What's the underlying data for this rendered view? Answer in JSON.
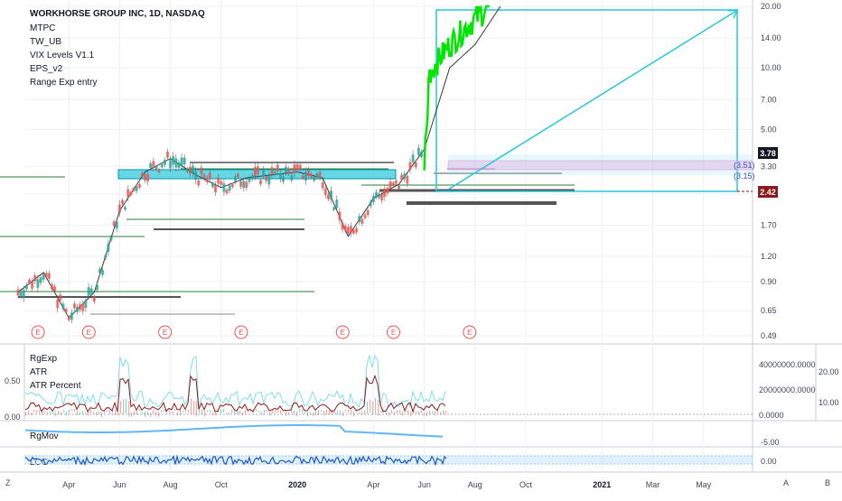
{
  "legend": {
    "title": "WORKHORSE GROUP INC, 1D, NASDAQ",
    "indicators": [
      "MTPC",
      "TW_UB",
      "VIX Levels V1.1",
      "EPS_v2",
      "Range Exp entry"
    ]
  },
  "sub_panels": {
    "rgexp": {
      "labels": [
        "RgExp",
        "ATR",
        "ATR Percent"
      ],
      "left_ticks": [
        "0.50",
        "0.00"
      ],
      "right_ticks": [
        "40000000.0000",
        "20000000.0000",
        "0.0000"
      ],
      "far_right_ticks": [
        "20.00",
        "10.00"
      ]
    },
    "rgmov": {
      "label": "RgMov",
      "right_ticks": [
        "-5.00"
      ]
    },
    "lcc": {
      "label": "LCC",
      "right_ticks": [
        "0.00"
      ]
    }
  },
  "badges": {
    "upper": "3.78",
    "lower": "2.42"
  },
  "fib_labels": [
    "(3.51)",
    "(3.15)"
  ],
  "earnings_marker": "E",
  "bottom_corner": {
    "left": "Z",
    "right_a": "A",
    "right_b": "B"
  },
  "colors": {
    "up": "#26a69a",
    "down": "#ef5350",
    "green": "#00e600",
    "cyan": "#00bcd4",
    "zone": "#4dd0e1",
    "maroon": "#8b1a1a"
  },
  "chart_data": {
    "type": "line",
    "title": "WORKHORSE GROUP INC, 1D, NASDAQ",
    "price_axis": {
      "scale": "log",
      "ticks": [
        20,
        14,
        10,
        7,
        5,
        3.3,
        2.42,
        1.7,
        1.2,
        0.9,
        0.65,
        0.49
      ],
      "tick_labels": [
        "20.00",
        "14.00",
        "10.00",
        "7.00",
        "5.00",
        "3.30",
        "2.42",
        "1.70",
        "1.20",
        "0.90",
        "0.65",
        "0.49"
      ]
    },
    "time_axis": {
      "labels": [
        "Apr",
        "Jun",
        "Aug",
        "Oct",
        "2020",
        "Apr",
        "Jun",
        "Aug",
        "Oct",
        "2021",
        "Mar",
        "May"
      ]
    },
    "series": [
      {
        "x": [
          "2019-02",
          "2019-03",
          "2019-04",
          "2019-05",
          "2019-06",
          "2019-07",
          "2019-08",
          "2019-09",
          "2019-10",
          "2019-11",
          "2019-12",
          "2020-01",
          "2020-02",
          "2020-03",
          "2020-04",
          "2020-05",
          "2020-06",
          "2020-07",
          "2020-08",
          "2020-09"
        ],
        "values": [
          0.8,
          1.0,
          0.6,
          0.8,
          2.0,
          3.1,
          3.6,
          3.0,
          2.6,
          2.9,
          3.0,
          3.1,
          2.9,
          1.5,
          2.3,
          2.7,
          4.0,
          10.0,
          13.0,
          20.0
        ]
      }
    ],
    "earnings_months": [
      "2019-03",
      "2019-05",
      "2019-08",
      "2019-11",
      "2020-03",
      "2020-05",
      "2020-08"
    ],
    "grid": true
  }
}
